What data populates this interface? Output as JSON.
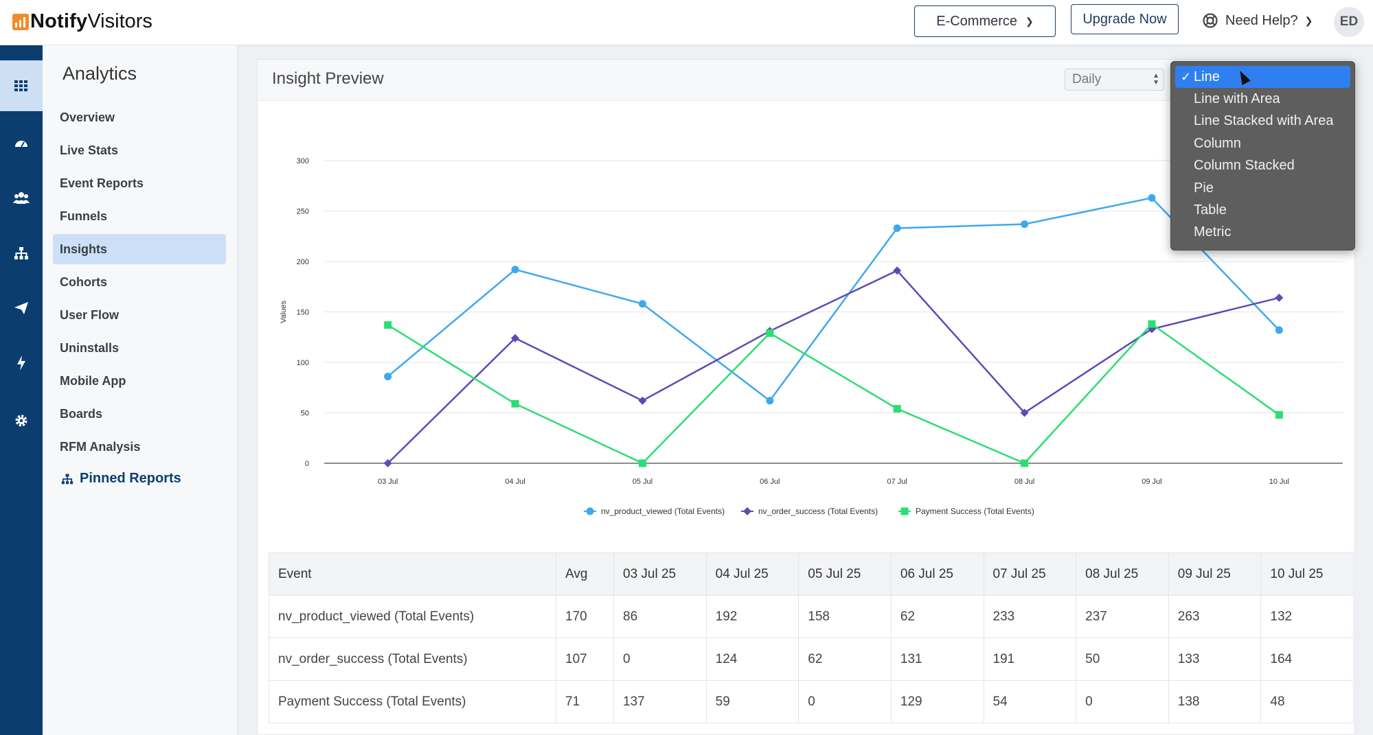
{
  "brand": {
    "name_bold": "Notify",
    "name_regular": "Visitors",
    "accent": "#f28b2a"
  },
  "topbar": {
    "project_select": "E-Commerce",
    "upgrade_label": "Upgrade Now",
    "help_label": "Need Help?",
    "avatar_initials": "ED"
  },
  "rail": {
    "items": [
      "grid-icon",
      "dashboard-icon",
      "users-icon",
      "sitemap-icon",
      "paper-plane-icon",
      "bolt-icon",
      "gear-icon"
    ],
    "active_index": 0,
    "color": "#0b3e6f"
  },
  "sidebar": {
    "title": "Analytics",
    "items": [
      "Overview",
      "Live Stats",
      "Event Reports",
      "Funnels",
      "Insights",
      "Cohorts",
      "User Flow",
      "Uninstalls",
      "Mobile App",
      "Boards",
      "RFM Analysis"
    ],
    "active": "Insights",
    "pinned_label": "Pinned Reports"
  },
  "panel": {
    "title": "Insight Preview",
    "interval_select": "Daily"
  },
  "chart_type_menu": {
    "options": [
      "Line",
      "Line with Area",
      "Line Stacked with Area",
      "Column",
      "Column Stacked",
      "Pie",
      "Table",
      "Metric"
    ],
    "selected": "Line"
  },
  "chart_data": {
    "type": "line",
    "ylabel": "Values",
    "ylim": [
      0,
      300
    ],
    "yticks": [
      0,
      50,
      100,
      150,
      200,
      250,
      300
    ],
    "categories": [
      "03 Jul",
      "04 Jul",
      "05 Jul",
      "06 Jul",
      "07 Jul",
      "08 Jul",
      "09 Jul",
      "10 Jul"
    ],
    "grid": true,
    "legend_position": "bottom",
    "series": [
      {
        "name": "nv_product_viewed (Total Events)",
        "color": "#3ea8ef",
        "marker": "circle",
        "values": [
          86,
          192,
          158,
          62,
          233,
          237,
          263,
          132
        ]
      },
      {
        "name": "nv_order_success (Total Events)",
        "color": "#5b4bb7",
        "marker": "diamond",
        "values": [
          0,
          124,
          62,
          131,
          191,
          50,
          133,
          164
        ]
      },
      {
        "name": "Payment Success (Total Events)",
        "color": "#2bde73",
        "marker": "square",
        "values": [
          137,
          59,
          0,
          129,
          54,
          0,
          138,
          48
        ]
      }
    ]
  },
  "table": {
    "headers": [
      "Event",
      "Avg",
      "03 Jul 25",
      "04 Jul 25",
      "05 Jul 25",
      "06 Jul 25",
      "07 Jul 25",
      "08 Jul 25",
      "09 Jul 25",
      "10 Jul 25"
    ],
    "rows": [
      [
        "nv_product_viewed (Total Events)",
        "170",
        "86",
        "192",
        "158",
        "62",
        "233",
        "237",
        "263",
        "132"
      ],
      [
        "nv_order_success (Total Events)",
        "107",
        "0",
        "124",
        "62",
        "131",
        "191",
        "50",
        "133",
        "164"
      ],
      [
        "Payment Success (Total Events)",
        "71",
        "137",
        "59",
        "0",
        "129",
        "54",
        "0",
        "138",
        "48"
      ]
    ]
  }
}
